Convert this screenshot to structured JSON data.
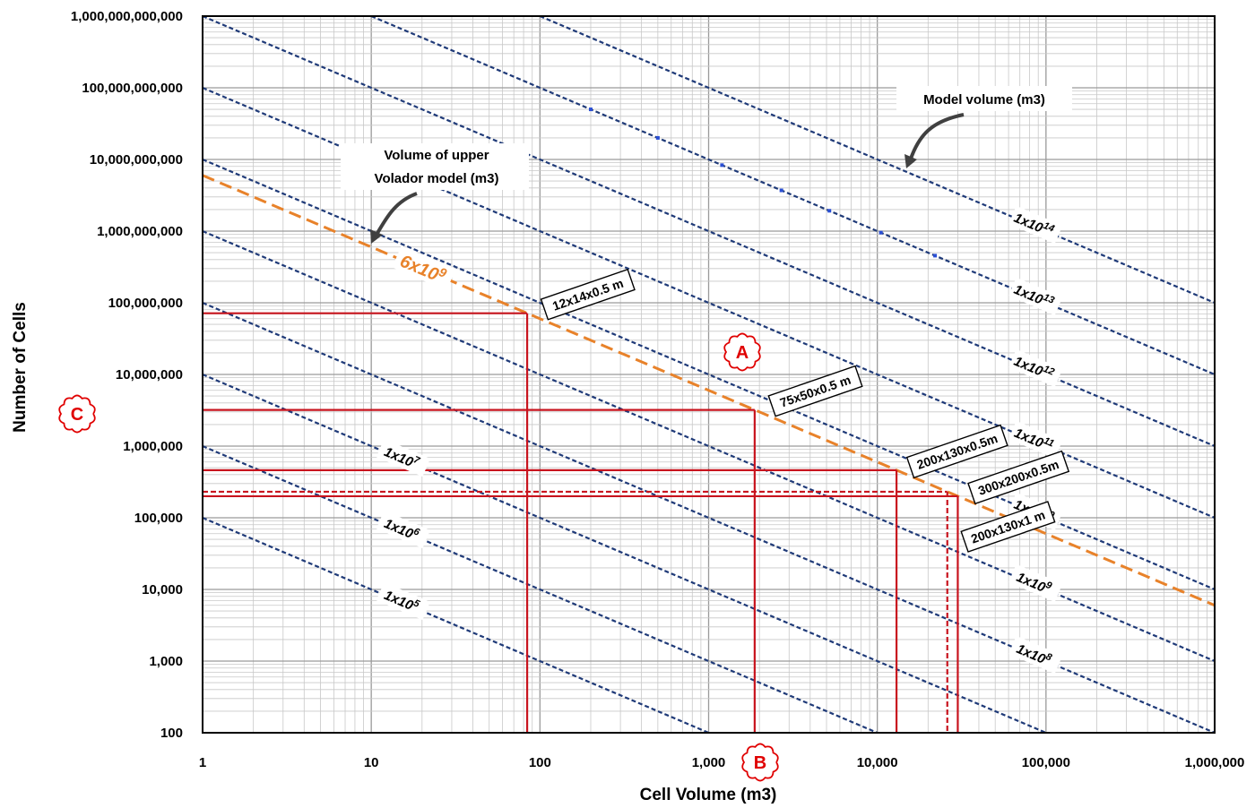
{
  "chart_data": {
    "type": "line",
    "x_scale": "log",
    "y_scale": "log",
    "xlim": [
      1,
      1000000
    ],
    "ylim": [
      100,
      1000000000000
    ],
    "xlabel": "Cell Volume (m3)",
    "ylabel": "Number of Cells",
    "x_ticks": [
      "1",
      "10",
      "100",
      "1,000",
      "10,000",
      "100,000",
      "1,000,000"
    ],
    "y_ticks": [
      "100",
      "1,000",
      "10,000",
      "100,000",
      "1,000,000",
      "10,000,000",
      "100,000,000",
      "1,000,000,000",
      "10,000,000,000",
      "100,000,000,000",
      "1,000,000,000,000"
    ],
    "grid": true,
    "iso_volume_lines": [
      {
        "name": "1x10^5",
        "volume": 100000,
        "label_base": "1x10",
        "label_exp": "5"
      },
      {
        "name": "1x10^6",
        "volume": 1000000,
        "label_base": "1x10",
        "label_exp": "6"
      },
      {
        "name": "1x10^7",
        "volume": 10000000,
        "label_base": "1x10",
        "label_exp": "7"
      },
      {
        "name": "1x10^8",
        "volume": 100000000,
        "label_base": "1x10",
        "label_exp": "8"
      },
      {
        "name": "1x10^9",
        "volume": 1000000000,
        "label_base": "1x10",
        "label_exp": "9"
      },
      {
        "name": "1x10^10",
        "volume": 10000000000,
        "label_base": "1x10",
        "label_exp": "10"
      },
      {
        "name": "1x10^11",
        "volume": 100000000000,
        "label_base": "1x10",
        "label_exp": "11"
      },
      {
        "name": "1x10^12",
        "volume": 1000000000000,
        "label_base": "1x10",
        "label_exp": "12"
      },
      {
        "name": "1x10^13",
        "volume": 10000000000000,
        "label_base": "1x10",
        "label_exp": "13"
      },
      {
        "name": "1x10^14",
        "volume": 100000000000000,
        "label_base": "1x10",
        "label_exp": "14"
      }
    ],
    "model_line": {
      "name": "6x10^9",
      "volume": 6000000000,
      "label_base": "6x10",
      "label_exp": "9",
      "color": "#e8822a"
    },
    "cell_sizes": [
      {
        "label": "12x14x0.5 m",
        "cell_volume": 84,
        "cells": 71428571
      },
      {
        "label": "75x50x0.5 m",
        "cell_volume": 1875,
        "cells": 3200000
      },
      {
        "label": "200x130x0.5m",
        "cell_volume": 13000,
        "cells": 461538
      },
      {
        "label": "300x200x0.5m",
        "cell_volume": 30000,
        "cells": 200000
      },
      {
        "label": "200x130x1 m",
        "cell_volume": 26000,
        "cells": 230769,
        "style": "dashed"
      }
    ],
    "annotations": {
      "model_volume": "Model volume (m3)",
      "upper_model_line1": "Volume of upper",
      "upper_model_line2": "Volador model (m3)"
    },
    "markers": [
      "A",
      "B",
      "C"
    ],
    "colors": {
      "iso_line": "#1f3a78",
      "model_line": "#e8822a",
      "guide_line": "#c8141e",
      "marker": "#e00000",
      "grid_major": "#9a9a9a",
      "grid_minor": "#c8c8c8"
    }
  }
}
